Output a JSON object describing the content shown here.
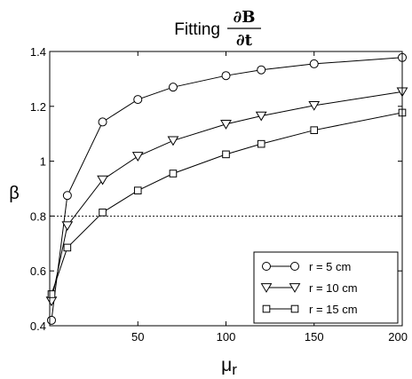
{
  "chart_data": {
    "type": "line",
    "title": {
      "prefix": "Fitting",
      "numerator": "∂B",
      "denominator": "∂t"
    },
    "xlabel": "μr",
    "xlabel_main": "μ",
    "xlabel_sub": "r",
    "ylabel": "β",
    "xlim": [
      0,
      200
    ],
    "ylim": [
      0.4,
      1.4
    ],
    "xticks": [
      50,
      100,
      150,
      200
    ],
    "yticks": [
      0.4,
      0.6,
      0.8,
      1.0,
      1.2,
      1.4
    ],
    "ytick_labels": [
      "0.4",
      "0.6",
      "0.8",
      "1",
      "1.2",
      "1.4"
    ],
    "xtick_labels": [
      "50",
      "100",
      "150",
      "200"
    ],
    "grid": false,
    "reference_line": {
      "y": 0.8,
      "style": "dotted"
    },
    "legend": {
      "placement": "bottom-right"
    },
    "series": [
      {
        "name": "r = 5 cm",
        "marker": "circle",
        "x": [
          1,
          10,
          30,
          50,
          70,
          100,
          120,
          150,
          200
        ],
        "y": [
          0.42,
          0.875,
          1.143,
          1.225,
          1.27,
          1.312,
          1.333,
          1.355,
          1.378
        ]
      },
      {
        "name": "r = 10 cm",
        "marker": "triangle-down",
        "x": [
          1,
          10,
          30,
          50,
          70,
          100,
          120,
          150,
          200
        ],
        "y": [
          0.49,
          0.765,
          0.932,
          1.018,
          1.075,
          1.135,
          1.165,
          1.203,
          1.253
        ]
      },
      {
        "name": "r = 15 cm",
        "marker": "square",
        "x": [
          1,
          10,
          30,
          50,
          70,
          100,
          120,
          150,
          200
        ],
        "y": [
          0.515,
          0.685,
          0.813,
          0.893,
          0.955,
          1.025,
          1.063,
          1.113,
          1.177
        ]
      }
    ]
  }
}
